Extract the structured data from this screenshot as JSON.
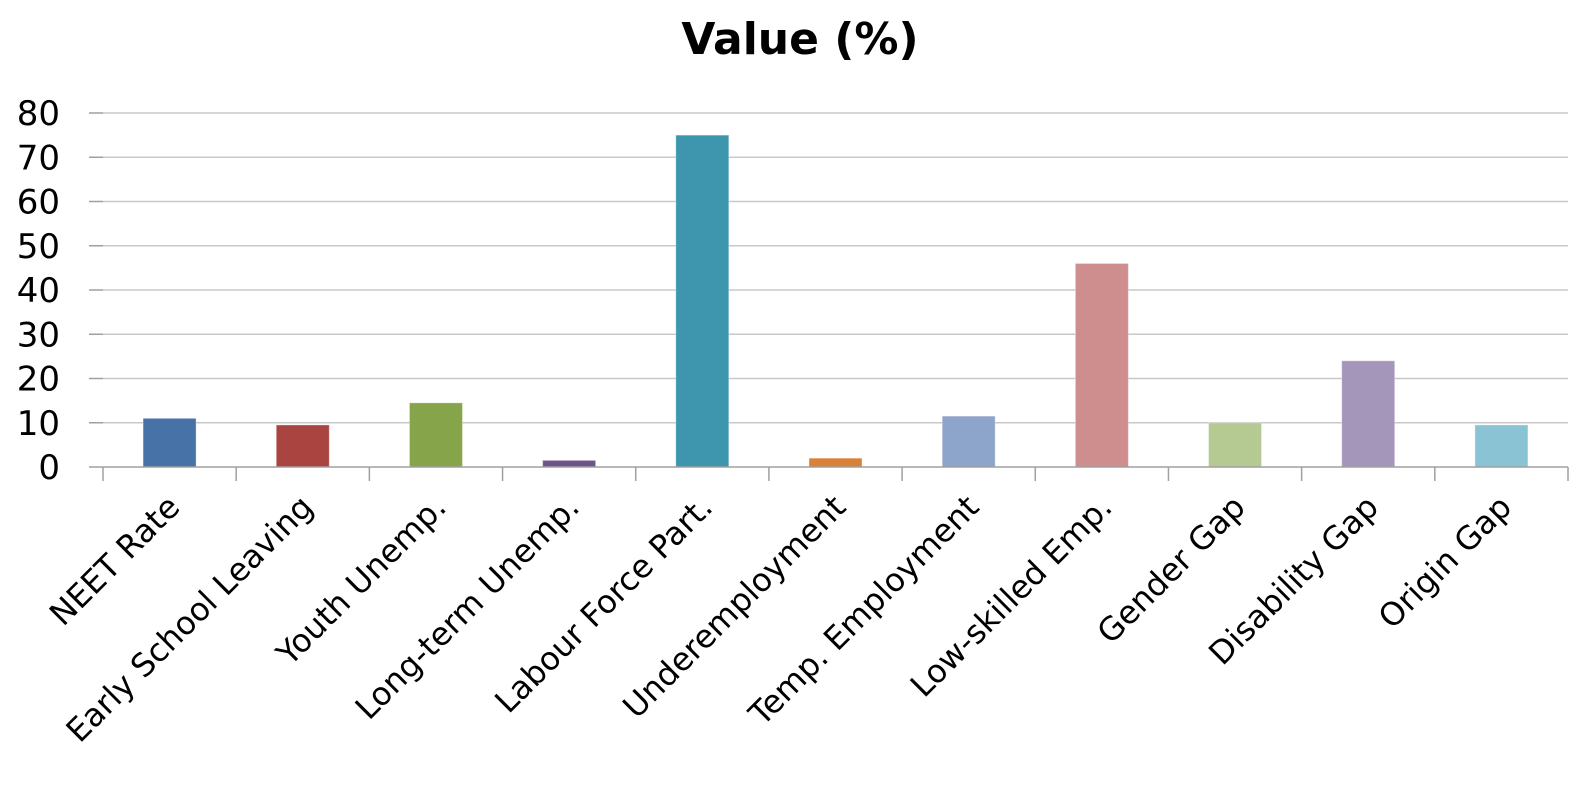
{
  "chart_data": {
    "type": "bar",
    "title": "Value (%)",
    "xlabel": "",
    "ylabel": "",
    "ylim": [
      0,
      80
    ],
    "yticks": [
      0,
      10,
      20,
      30,
      40,
      50,
      60,
      70,
      80
    ],
    "grid": true,
    "legend": "none",
    "categories": [
      "NEET Rate",
      "Early School Leaving",
      "Youth Unemp.",
      "Long-term Unemp.",
      "Labour Force Part.",
      "Underemployment",
      "Temp. Employment",
      "Low-skilled Emp.",
      "Gender Gap",
      "Disability Gap",
      "Origin Gap"
    ],
    "values": [
      11,
      9.5,
      14.5,
      1.5,
      75,
      2,
      11.5,
      46,
      10,
      24,
      9.5
    ],
    "colors": [
      "#4672a8",
      "#a94441",
      "#86a44a",
      "#6e548d",
      "#3d96ae",
      "#da8137",
      "#8ea5cb",
      "#ce8e8d",
      "#b5ca92",
      "#a496ba",
      "#8ac3d4"
    ]
  }
}
